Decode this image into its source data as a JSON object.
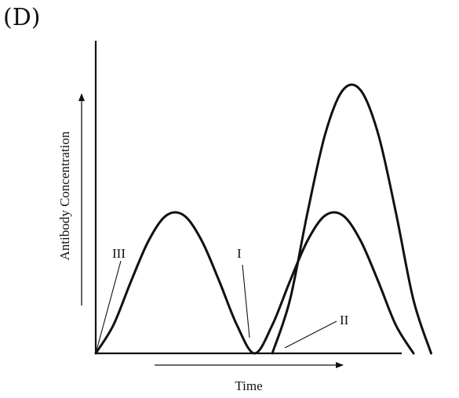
{
  "figure_label": "(D)",
  "chart_data": {
    "type": "line",
    "title": "",
    "xlabel": "Time",
    "ylabel": "Antibody Concentration",
    "x_ticks": [],
    "y_ticks": [],
    "grid": false,
    "legend": "none",
    "xlim": [
      0,
      10
    ],
    "ylim": [
      0,
      10
    ],
    "series": [
      {
        "points": [
          [
            0,
            0
          ],
          [
            0.5,
            0.9
          ],
          [
            1.0,
            2.3
          ],
          [
            1.5,
            3.6
          ],
          [
            2.0,
            4.4
          ],
          [
            2.5,
            4.4
          ],
          [
            3.0,
            3.6
          ],
          [
            3.5,
            2.3
          ],
          [
            4.0,
            0.9
          ],
          [
            4.5,
            0
          ],
          [
            5.0,
            0.9
          ],
          [
            5.5,
            2.3
          ],
          [
            6.0,
            3.6
          ],
          [
            6.5,
            4.4
          ],
          [
            7.0,
            4.4
          ],
          [
            7.5,
            3.6
          ],
          [
            8.0,
            2.3
          ],
          [
            8.5,
            0.9
          ],
          [
            9.0,
            0
          ]
        ]
      },
      {
        "points": [
          [
            5.0,
            0
          ],
          [
            5.5,
            1.7
          ],
          [
            6.0,
            4.5
          ],
          [
            6.5,
            7.0
          ],
          [
            7.0,
            8.4
          ],
          [
            7.5,
            8.4
          ],
          [
            8.0,
            7.0
          ],
          [
            8.5,
            4.5
          ],
          [
            9.0,
            1.7
          ],
          [
            9.5,
            0
          ]
        ]
      }
    ],
    "annotations": [
      {
        "text": "III",
        "at": [
          0,
          0
        ]
      },
      {
        "text": "I",
        "at": [
          4.5,
          0
        ]
      },
      {
        "text": "II",
        "at": [
          5.0,
          0
        ]
      }
    ]
  }
}
